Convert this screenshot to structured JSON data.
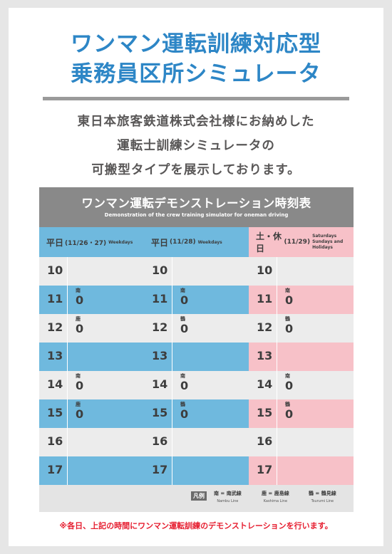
{
  "title": {
    "line1": "ワンマン運転訓練対応型",
    "line2": "乗務員区所シミュレータ"
  },
  "intro": {
    "line1": "東日本旅客鉄道株式会社様にお納めした",
    "line2": "運転士訓練シミュレータの",
    "line3": "可搬型タイプを展示しております。"
  },
  "table": {
    "title": "ワンマン運転デモンストレーション時刻表",
    "subtitle": "Demonstration of the crew training simulator for oneman driving",
    "columns": [
      {
        "label": "平日",
        "date": "(11/26・27)",
        "en": "Weekdays",
        "rows": [
          {
            "hour": "10",
            "mark": "",
            "minute": ""
          },
          {
            "hour": "11",
            "mark": "南",
            "minute": "0"
          },
          {
            "hour": "12",
            "mark": "鹿",
            "minute": "0"
          },
          {
            "hour": "13",
            "mark": "",
            "minute": ""
          },
          {
            "hour": "14",
            "mark": "南",
            "minute": "0"
          },
          {
            "hour": "15",
            "mark": "鹿",
            "minute": "0"
          },
          {
            "hour": "16",
            "mark": "",
            "minute": ""
          },
          {
            "hour": "17",
            "mark": "",
            "minute": ""
          }
        ]
      },
      {
        "label": "平日",
        "date": "(11/28)",
        "en": "Weekdays",
        "rows": [
          {
            "hour": "10",
            "mark": "",
            "minute": ""
          },
          {
            "hour": "11",
            "mark": "南",
            "minute": "0"
          },
          {
            "hour": "12",
            "mark": "鶴",
            "minute": "0"
          },
          {
            "hour": "13",
            "mark": "",
            "minute": ""
          },
          {
            "hour": "14",
            "mark": "南",
            "minute": "0"
          },
          {
            "hour": "15",
            "mark": "鶴",
            "minute": "0"
          },
          {
            "hour": "16",
            "mark": "",
            "minute": ""
          },
          {
            "hour": "17",
            "mark": "",
            "minute": ""
          }
        ]
      },
      {
        "label": "土・休日",
        "date": "(11/29)",
        "en1": "Saturdays",
        "en2": "Sundays and Holidays",
        "rows": [
          {
            "hour": "10",
            "mark": "",
            "minute": ""
          },
          {
            "hour": "11",
            "mark": "南",
            "minute": "0"
          },
          {
            "hour": "12",
            "mark": "鶴",
            "minute": "0"
          },
          {
            "hour": "13",
            "mark": "",
            "minute": ""
          },
          {
            "hour": "14",
            "mark": "南",
            "minute": "0"
          },
          {
            "hour": "15",
            "mark": "鶴",
            "minute": "0"
          },
          {
            "hour": "16",
            "mark": "",
            "minute": ""
          },
          {
            "hour": "17",
            "mark": "",
            "minute": ""
          }
        ]
      }
    ],
    "legend": {
      "label": "凡例",
      "items": [
        {
          "key": "南 = 南武線",
          "en": "Nambu Line"
        },
        {
          "key": "鹿 = 鹿島線",
          "en": "Kashima Line"
        },
        {
          "key": "鶴 = 鶴見線",
          "en": "Tsurumi Line"
        }
      ]
    }
  },
  "note": "※各日、上記の時間にワンマン運転訓練のデモンストレーションを行います。",
  "colors": {
    "title": "#2d86c6",
    "blue_row": "#6fb9de",
    "pink_row": "#f7c1c8",
    "gray_row": "#ececec",
    "pink_header": "#f7c1c8",
    "blue_header": "#6fb9de",
    "note": "#e61d2f"
  }
}
